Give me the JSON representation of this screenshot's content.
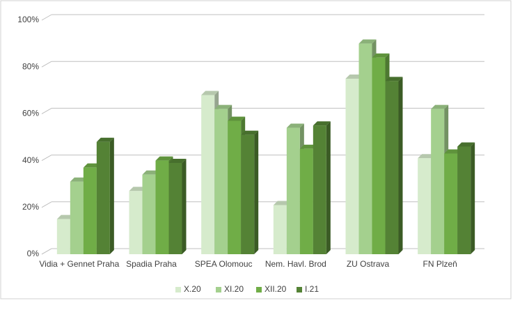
{
  "chart_data": {
    "type": "bar3d",
    "categories": [
      "Vidia + Gennet Praha",
      "Spadia Praha",
      "SPEA Olomouc",
      "Nem. Havl. Brod",
      "ZU Ostrava",
      "FN Plzeň"
    ],
    "series": [
      {
        "name": "X.20",
        "color": "#d6ebcc",
        "values": [
          15,
          27,
          68,
          21,
          75,
          41
        ]
      },
      {
        "name": "XI.20",
        "color": "#a4d08e",
        "values": [
          31,
          34,
          62,
          54,
          90,
          62
        ]
      },
      {
        "name": "XII.20",
        "color": "#70ad47",
        "values": [
          37,
          40,
          57,
          45,
          84,
          43
        ]
      },
      {
        "name": "I.21",
        "color": "#548235",
        "values": [
          48,
          39,
          51,
          55,
          74,
          46
        ]
      }
    ],
    "ylim": [
      0,
      100
    ],
    "yticks": [
      {
        "value": 0,
        "label": "0%"
      },
      {
        "value": 20,
        "label": "20%"
      },
      {
        "value": 40,
        "label": "40%"
      },
      {
        "value": 60,
        "label": "60%"
      },
      {
        "value": 80,
        "label": "80%"
      },
      {
        "value": 100,
        "label": "100%"
      }
    ],
    "grid": true,
    "legend": "bottom"
  }
}
